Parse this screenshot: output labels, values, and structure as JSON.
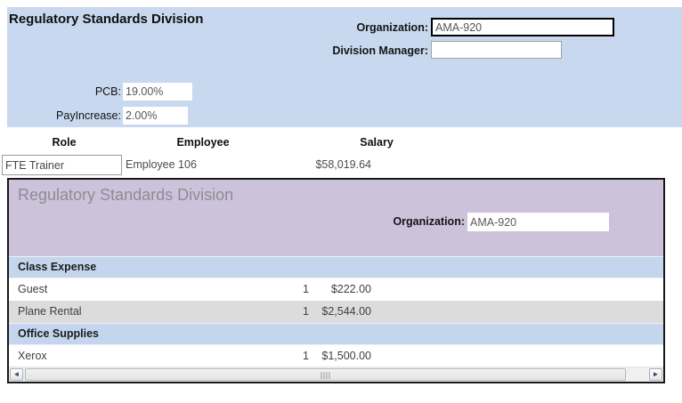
{
  "colors": {
    "top_panel_bg": "#c7d8ef",
    "subform_header_bg": "#ccc3da",
    "group_band_bg": "#c3d6ee",
    "shaded_row_bg": "#dcdcdc",
    "scroll_arrow": "#2e4668"
  },
  "main_form": {
    "title": "Regulatory Standards Division",
    "fields": {
      "organization": {
        "label": "Organization:",
        "value": "AMA-920"
      },
      "division_manager": {
        "label": "Division Manager:",
        "value": ""
      },
      "pcb": {
        "label": "PCB:",
        "value": "19.00%"
      },
      "pay_increase": {
        "label": "PayIncrease:",
        "value": "2.00%"
      }
    },
    "detail": {
      "headers": {
        "role": "Role",
        "employee": "Employee",
        "salary": "Salary"
      },
      "record": {
        "role": "FTE Trainer",
        "employee": "Employee 106",
        "salary": "$58,019.64"
      }
    }
  },
  "subform": {
    "title": "Regulatory Standards Division",
    "organization": {
      "label": "Organization:",
      "value": "AMA-920"
    },
    "groups": [
      {
        "name": "Class Expense",
        "items": [
          {
            "name": "Guest",
            "qty": "1",
            "amount": "$222.00"
          },
          {
            "name": "Plane Rental",
            "qty": "1",
            "amount": "$2,544.00"
          }
        ]
      },
      {
        "name": "Office Supplies",
        "items": [
          {
            "name": "Xerox",
            "qty": "1",
            "amount": "$1,500.00"
          }
        ]
      }
    ],
    "scrollbar": {
      "left_arrow": "◄",
      "right_arrow": "►"
    }
  }
}
